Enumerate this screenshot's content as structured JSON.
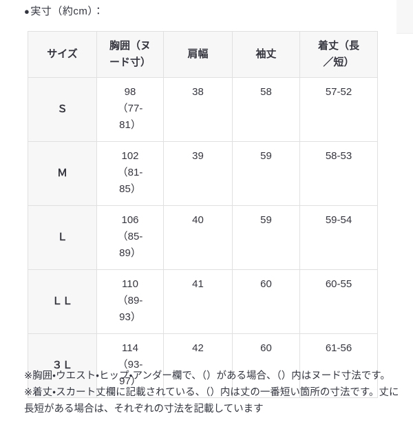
{
  "section": {
    "bullet": "●",
    "title": "実寸（約cm）："
  },
  "table": {
    "columns": [
      "サイズ",
      "胸囲（ヌ\nード寸）",
      "肩幅",
      "袖丈",
      "着丈（長\n／短）"
    ],
    "rows": [
      {
        "size": "Ｓ",
        "chest": "98\n（77-\n81）",
        "shoulder": "38",
        "sleeve": "58",
        "length": "57-52"
      },
      {
        "size": "Ｍ",
        "chest": "102\n（81-\n85）",
        "shoulder": "39",
        "sleeve": "59",
        "length": "58-53"
      },
      {
        "size": "Ｌ",
        "chest": "106\n（85-\n89）",
        "shoulder": "40",
        "sleeve": "59",
        "length": "59-54"
      },
      {
        "size": "ＬＬ",
        "chest": "110\n（89-\n93）",
        "shoulder": "41",
        "sleeve": "60",
        "length": "60-55"
      },
      {
        "size": "３Ｌ",
        "chest": "114\n（93-\n97）",
        "shoulder": "42",
        "sleeve": "60",
        "length": "61-56"
      }
    ]
  },
  "notes": [
    "※胸囲・ウエスト・ヒップ・アンダー欄で、（）がある場合、（）内はヌード寸法です。",
    "※着丈・スカート丈欄に記載されている、（）内は丈の一番短い箇所の寸法です。丈に長短がある場合は、それぞれの寸法を記載しています"
  ],
  "colors": {
    "text": "#35353f",
    "border": "#e0e0e0",
    "header_bg": "#f7f7f7",
    "corner_bg": "#f7f7f7"
  }
}
